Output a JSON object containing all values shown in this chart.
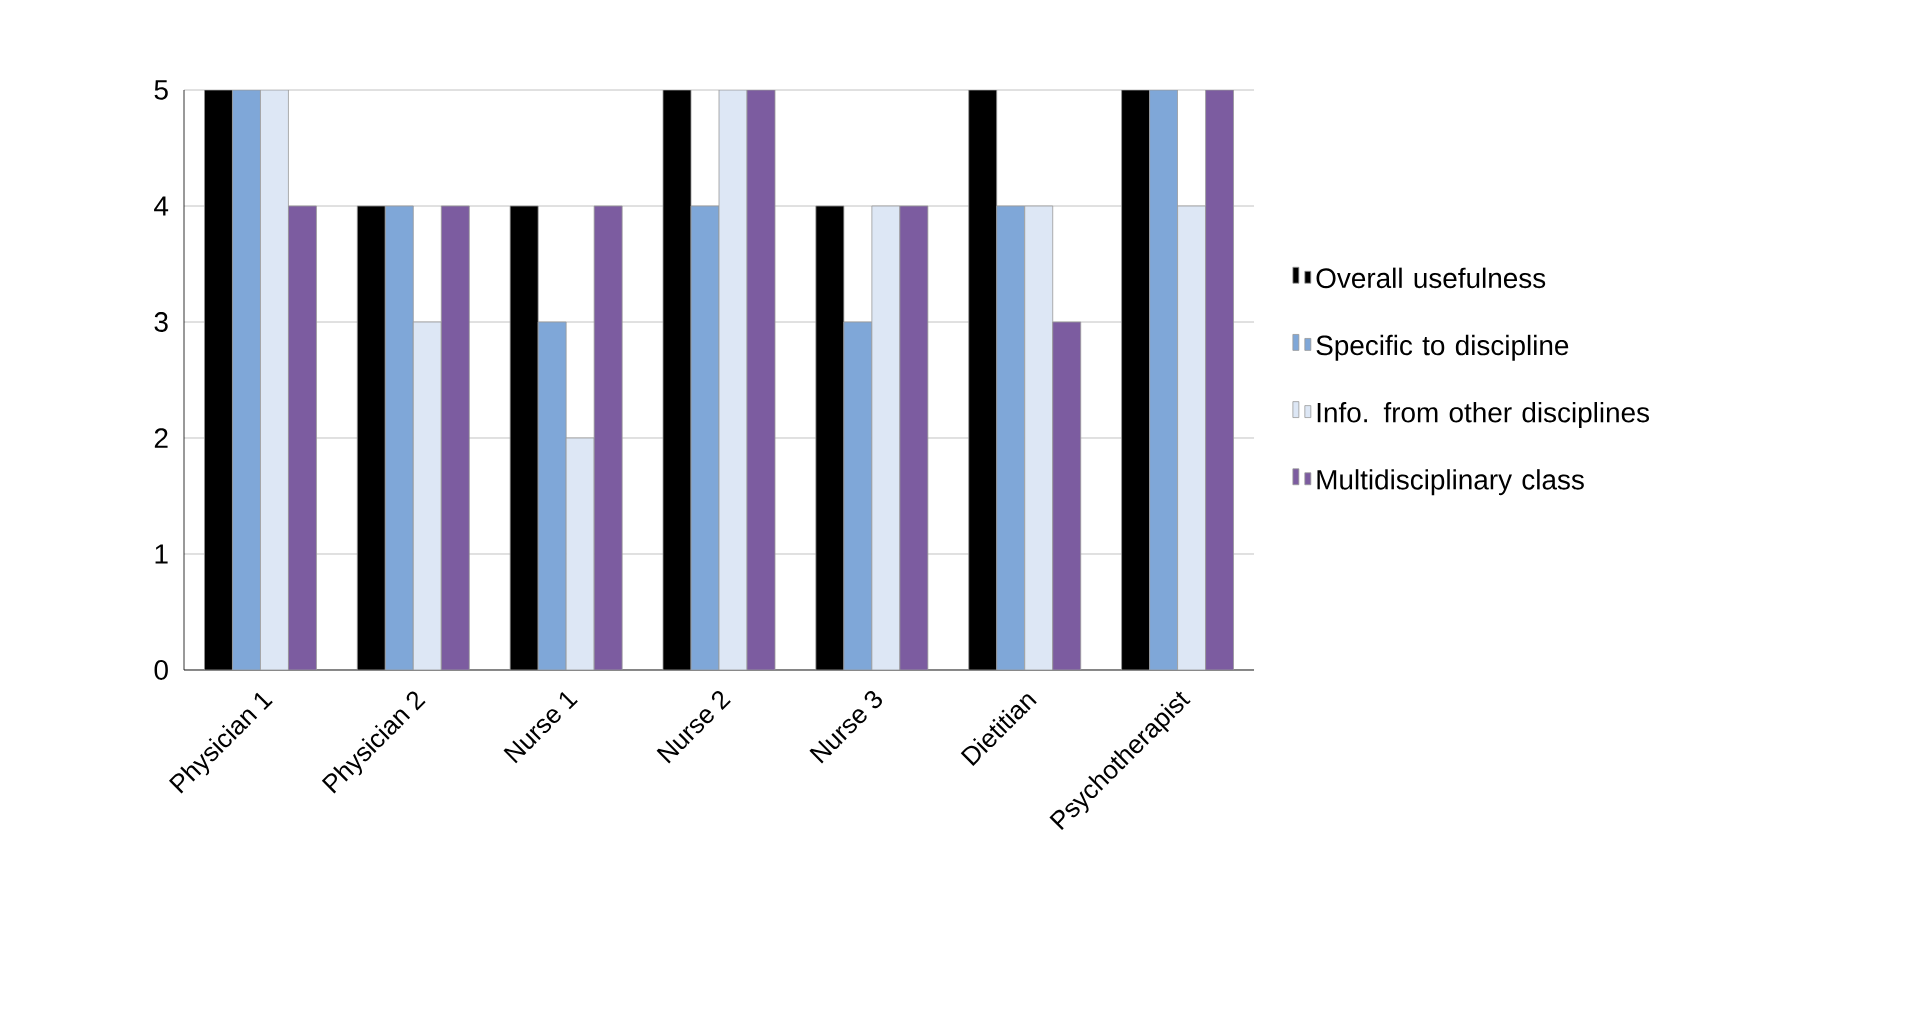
{
  "chart_data": {
    "type": "bar",
    "categories": [
      "Physician 1",
      "Physician 2",
      "Nurse 1",
      "Nurse 2",
      "Nurse 3",
      "Dietitian",
      "Psychotherapist"
    ],
    "series": [
      {
        "name": "Overall usefulness",
        "color": "#000000",
        "values": [
          5,
          4,
          4,
          5,
          4,
          5,
          5
        ]
      },
      {
        "name": "Specific to discipline",
        "color": "#7fa7d8",
        "values": [
          5,
          4,
          3,
          4,
          3,
          4,
          5
        ]
      },
      {
        "name": "Info. from other disciplines",
        "color": "#dde7f5",
        "values": [
          5,
          3,
          2,
          5,
          4,
          4,
          4
        ]
      },
      {
        "name": "Multidisciplinary class",
        "color": "#7c5ca0",
        "values": [
          4,
          4,
          4,
          5,
          4,
          3,
          5
        ]
      }
    ],
    "ylim": [
      0,
      5
    ],
    "yticks": [
      0,
      1,
      2,
      3,
      4,
      5
    ],
    "grid": "y",
    "legend": "right"
  }
}
